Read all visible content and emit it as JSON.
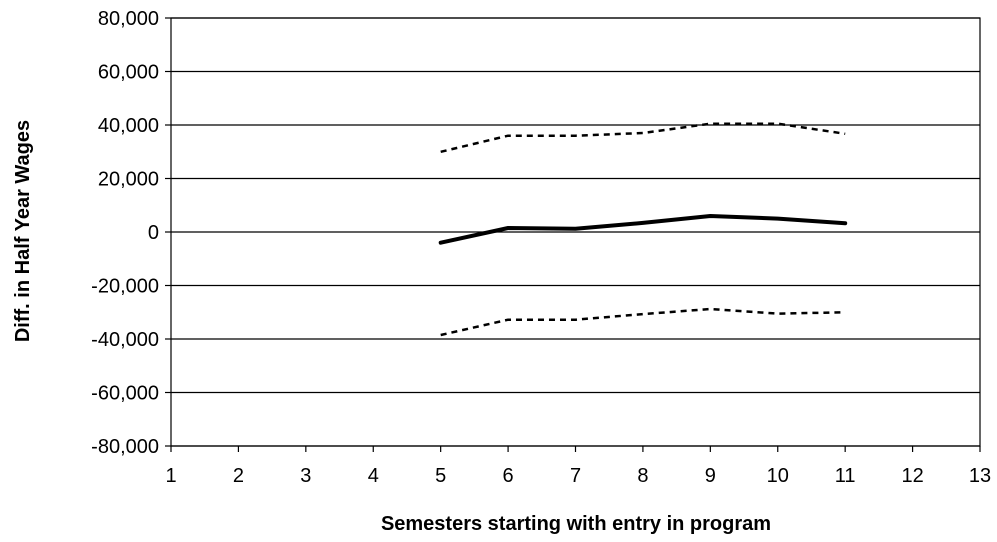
{
  "chart_data": {
    "type": "line",
    "title": "",
    "xlabel": "Semesters starting with entry in program",
    "ylabel": "Diff. in Half Year Wages",
    "xlim": [
      1,
      13
    ],
    "ylim": [
      -80000,
      80000
    ],
    "x_ticks": [
      1,
      2,
      3,
      4,
      5,
      6,
      7,
      8,
      9,
      10,
      11,
      12,
      13
    ],
    "x_tick_labels": [
      "1",
      "2",
      "3",
      "4",
      "5",
      "6",
      "7",
      "8",
      "9",
      "10",
      "11",
      "12",
      "13"
    ],
    "y_ticks": [
      80000,
      60000,
      40000,
      20000,
      0,
      -20000,
      -40000,
      -60000,
      -80000
    ],
    "y_tick_labels": [
      "80,000",
      "60,000",
      "40,000",
      "20,000",
      "0",
      "-20,000",
      "-40,000",
      "-60,000",
      "-80,000"
    ],
    "grid": "horizontal",
    "legend": "none",
    "series": [
      {
        "style": "solid",
        "color": "#000000",
        "x": [
          5,
          6,
          7,
          8,
          9,
          10,
          11
        ],
        "values": [
          -4000,
          1500,
          1200,
          3400,
          6000,
          5000,
          3300
        ]
      },
      {
        "style": "dotted",
        "color": "#000000",
        "x": [
          5,
          6,
          7,
          8,
          9,
          10,
          11
        ],
        "values": [
          30000,
          36000,
          36000,
          37000,
          40500,
          40500,
          36700
        ]
      },
      {
        "style": "dotted",
        "color": "#000000",
        "x": [
          5,
          6,
          7,
          8,
          9,
          10,
          11
        ],
        "values": [
          -38500,
          -32800,
          -32800,
          -30700,
          -28800,
          -30500,
          -30000
        ]
      }
    ]
  }
}
